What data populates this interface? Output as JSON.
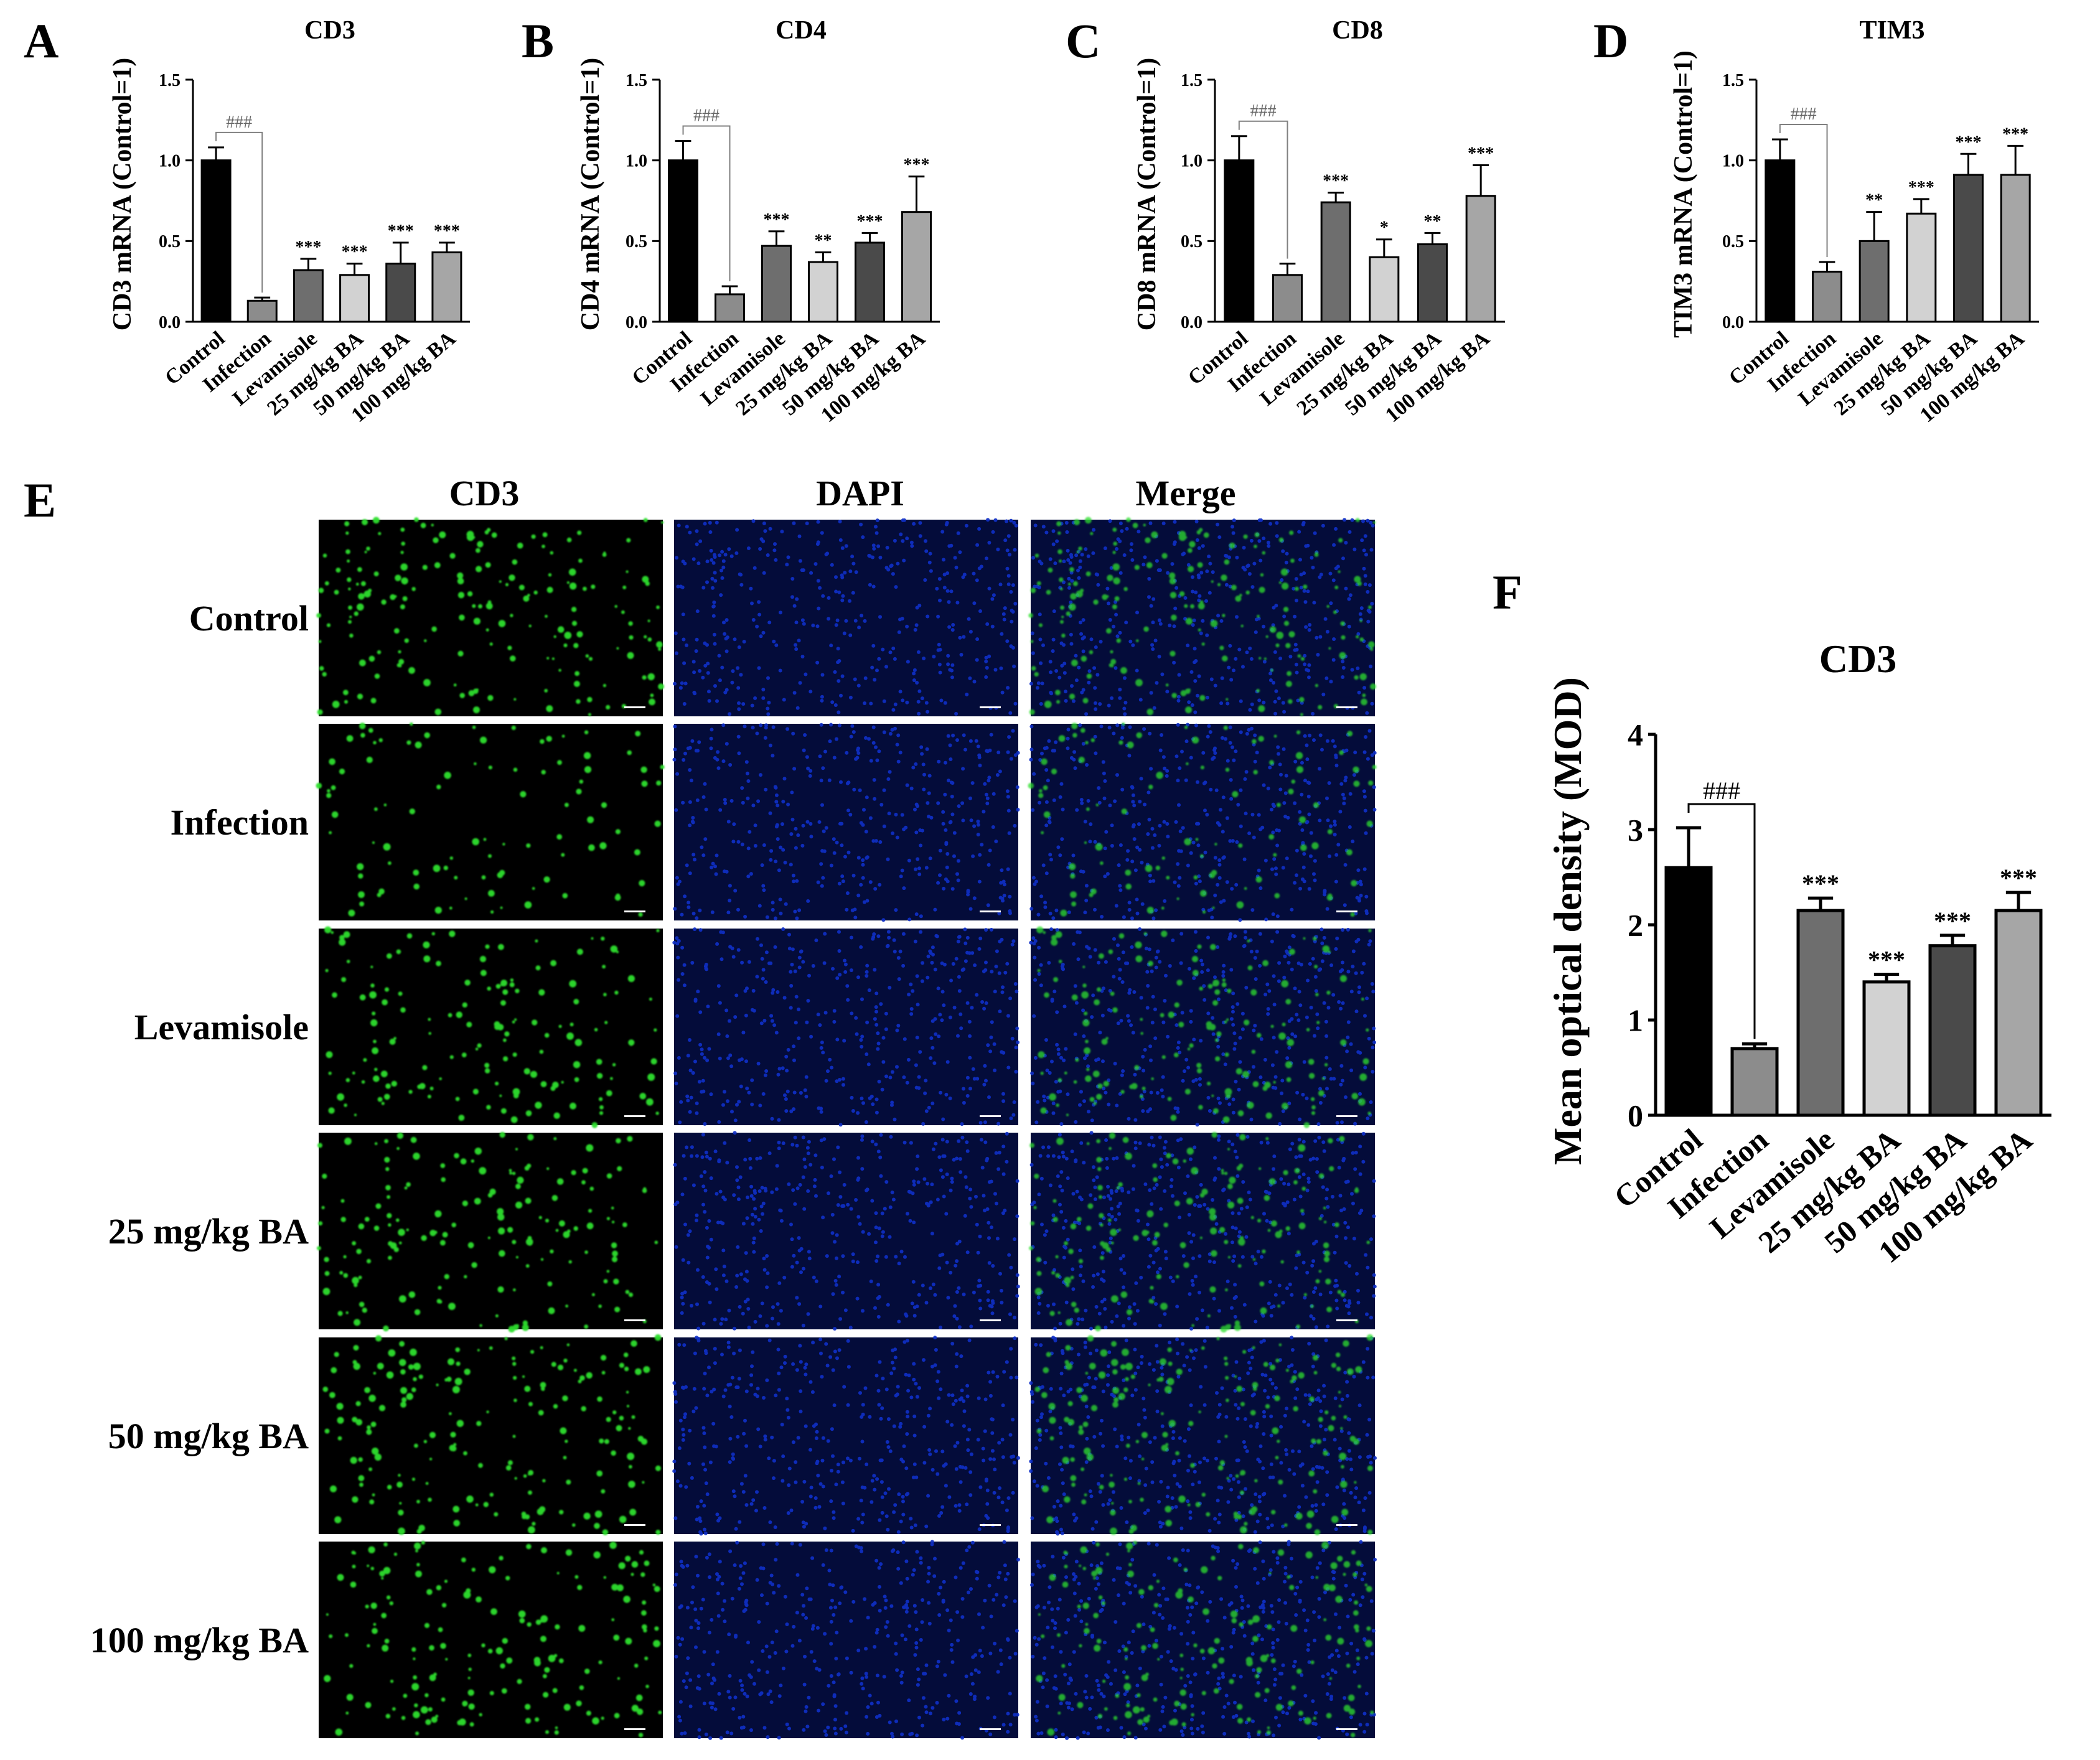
{
  "palette": {
    "bar_colors": [
      "#000000",
      "#8c8c8c",
      "#6e6e6e",
      "#d2d2d2",
      "#4a4a4a",
      "#a6a6a6"
    ],
    "axis": "#000000",
    "bracket": "#808080",
    "nuclei_blue": "#1030c8",
    "cd3_green": "#2ee02e"
  },
  "groups": [
    "Control",
    "Infection",
    "Levamisole",
    "25 mg/kg BA",
    "50 mg/kg BA",
    "100 mg/kg BA"
  ],
  "panel_letters": {
    "a": "A",
    "b": "B",
    "c": "C",
    "d": "D",
    "e": "E",
    "f": "F"
  },
  "chart_data": [
    {
      "id": "A",
      "type": "bar",
      "title": "CD3",
      "ylabel": "CD3 mRNA (Control=1)",
      "categories": [
        "Control",
        "Infection",
        "Levamisole",
        "25 mg/kg BA",
        "50 mg/kg BA",
        "100 mg/kg BA"
      ],
      "values": [
        1.0,
        0.13,
        0.32,
        0.29,
        0.36,
        0.43
      ],
      "errors": [
        0.08,
        0.02,
        0.07,
        0.07,
        0.13,
        0.06
      ],
      "significance": [
        "",
        "###",
        "***",
        "***",
        "***",
        "***"
      ],
      "ylim": [
        0,
        1.5
      ],
      "yticks": [
        0.0,
        0.5,
        1.0,
        1.5
      ],
      "yticklabels": [
        "0.0",
        "0.5",
        "1.0",
        "1.5"
      ]
    },
    {
      "id": "B",
      "type": "bar",
      "title": "CD4",
      "ylabel": "CD4 mRNA (Control=1)",
      "categories": [
        "Control",
        "Infection",
        "Levamisole",
        "25 mg/kg BA",
        "50 mg/kg BA",
        "100 mg/kg BA"
      ],
      "values": [
        1.0,
        0.17,
        0.47,
        0.37,
        0.49,
        0.68
      ],
      "errors": [
        0.12,
        0.05,
        0.09,
        0.06,
        0.06,
        0.22
      ],
      "significance": [
        "",
        "###",
        "***",
        "**",
        "***",
        "***"
      ],
      "ylim": [
        0,
        1.5
      ],
      "yticks": [
        0.0,
        0.5,
        1.0,
        1.5
      ],
      "yticklabels": [
        "0.0",
        "0.5",
        "1.0",
        "1.5"
      ]
    },
    {
      "id": "C",
      "type": "bar",
      "title": "CD8",
      "ylabel": "CD8 mRNA (Control=1)",
      "categories": [
        "Control",
        "Infection",
        "Levamisole",
        "25 mg/kg BA",
        "50 mg/kg BA",
        "100 mg/kg BA"
      ],
      "values": [
        1.0,
        0.29,
        0.74,
        0.4,
        0.48,
        0.78
      ],
      "errors": [
        0.15,
        0.07,
        0.06,
        0.11,
        0.07,
        0.19
      ],
      "significance": [
        "",
        "###",
        "***",
        "*",
        "**",
        "***"
      ],
      "ylim": [
        0,
        1.5
      ],
      "yticks": [
        0.0,
        0.5,
        1.0,
        1.5
      ],
      "yticklabels": [
        "0.0",
        "0.5",
        "1.0",
        "1.5"
      ]
    },
    {
      "id": "D",
      "type": "bar",
      "title": "TIM3",
      "ylabel": "TIM3 mRNA (Control=1)",
      "categories": [
        "Control",
        "Infection",
        "Levamisole",
        "25 mg/kg BA",
        "50 mg/kg BA",
        "100 mg/kg BA"
      ],
      "values": [
        1.0,
        0.31,
        0.5,
        0.67,
        0.91,
        0.91
      ],
      "errors": [
        0.13,
        0.06,
        0.18,
        0.09,
        0.13,
        0.18
      ],
      "significance": [
        "",
        "###",
        "**",
        "***",
        "***",
        "***"
      ],
      "ylim": [
        0,
        1.5
      ],
      "yticks": [
        0.0,
        0.5,
        1.0,
        1.5
      ],
      "yticklabels": [
        "0.0",
        "0.5",
        "1.0",
        "1.5"
      ]
    },
    {
      "id": "F",
      "type": "bar",
      "title": "CD3",
      "ylabel": "Mean optical density (MOD)",
      "categories": [
        "Control",
        "Infection",
        "Levamisole",
        "25 mg/kg BA",
        "50 mg/kg BA",
        "100 mg/kg BA"
      ],
      "values": [
        2.6,
        0.7,
        2.15,
        1.4,
        1.78,
        2.15
      ],
      "errors": [
        0.42,
        0.05,
        0.13,
        0.08,
        0.11,
        0.19
      ],
      "significance": [
        "",
        "###",
        "***",
        "***",
        "***",
        "***"
      ],
      "ylim": [
        0,
        4
      ],
      "yticks": [
        0,
        1,
        2,
        3,
        4
      ],
      "yticklabels": [
        "0",
        "1",
        "2",
        "3",
        "4"
      ]
    }
  ],
  "micrograph_grid": {
    "columns": [
      "CD3",
      "DAPI",
      "Merge"
    ],
    "rows": [
      "Control",
      "Infection",
      "Levamisole",
      "25 mg/kg BA",
      "50 mg/kg BA",
      "100 mg/kg BA"
    ],
    "cd3_density": [
      0.9,
      0.25,
      0.7,
      0.75,
      0.85,
      0.8
    ]
  }
}
